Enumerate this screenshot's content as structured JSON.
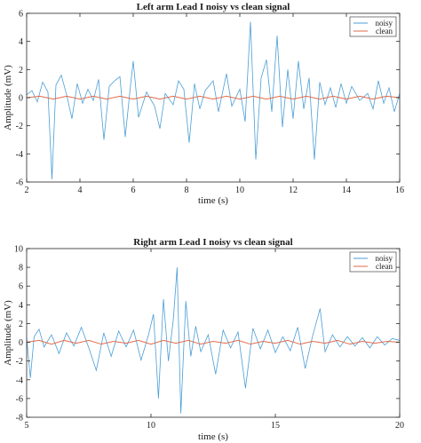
{
  "chart_data": [
    {
      "type": "line",
      "title": "Left arm Lead I noisy vs clean signal",
      "xlabel": "time (s)",
      "ylabel": "Amplitude (mV)",
      "xlim": [
        2,
        16
      ],
      "ylim": [
        -6,
        6
      ],
      "xticks": [
        2,
        4,
        6,
        8,
        10,
        12,
        14,
        16
      ],
      "yticks": [
        -6,
        -4,
        -2,
        0,
        2,
        4,
        6
      ],
      "legend_position": "top-right",
      "series": [
        {
          "name": "noisy",
          "color": "#4a9ed6",
          "points": [
            [
              2.0,
              0.2
            ],
            [
              2.2,
              0.5
            ],
            [
              2.4,
              -0.3
            ],
            [
              2.6,
              1.1
            ],
            [
              2.8,
              0.4
            ],
            [
              2.95,
              -5.8
            ],
            [
              3.1,
              0.9
            ],
            [
              3.3,
              1.6
            ],
            [
              3.5,
              0.2
            ],
            [
              3.7,
              -1.5
            ],
            [
              3.9,
              1.0
            ],
            [
              4.1,
              -0.4
            ],
            [
              4.3,
              0.6
            ],
            [
              4.5,
              -0.2
            ],
            [
              4.7,
              1.3
            ],
            [
              4.9,
              -3.0
            ],
            [
              5.1,
              0.8
            ],
            [
              5.3,
              1.2
            ],
            [
              5.5,
              1.5
            ],
            [
              5.7,
              -2.8
            ],
            [
              5.9,
              0.9
            ],
            [
              6.0,
              2.6
            ],
            [
              6.2,
              -1.4
            ],
            [
              6.5,
              0.4
            ],
            [
              6.8,
              -0.6
            ],
            [
              7.0,
              -2.2
            ],
            [
              7.2,
              0.3
            ],
            [
              7.5,
              -0.5
            ],
            [
              7.7,
              1.2
            ],
            [
              7.9,
              0.6
            ],
            [
              8.1,
              -3.2
            ],
            [
              8.3,
              1.0
            ],
            [
              8.5,
              -0.8
            ],
            [
              8.7,
              0.5
            ],
            [
              9.0,
              1.2
            ],
            [
              9.2,
              -1.0
            ],
            [
              9.5,
              1.7
            ],
            [
              9.7,
              -0.6
            ],
            [
              10.0,
              0.6
            ],
            [
              10.2,
              -1.7
            ],
            [
              10.4,
              5.4
            ],
            [
              10.6,
              -4.4
            ],
            [
              10.8,
              1.4
            ],
            [
              11.0,
              2.7
            ],
            [
              11.2,
              -1.0
            ],
            [
              11.4,
              4.4
            ],
            [
              11.6,
              -2.1
            ],
            [
              11.8,
              2.0
            ],
            [
              12.0,
              -1.5
            ],
            [
              12.2,
              2.6
            ],
            [
              12.4,
              -0.8
            ],
            [
              12.6,
              1.4
            ],
            [
              12.8,
              -4.4
            ],
            [
              13.0,
              1.1
            ],
            [
              13.2,
              -0.5
            ],
            [
              13.4,
              0.7
            ],
            [
              13.6,
              -0.7
            ],
            [
              13.8,
              1.0
            ],
            [
              14.0,
              -0.4
            ],
            [
              14.2,
              0.8
            ],
            [
              14.5,
              -0.2
            ],
            [
              14.8,
              0.3
            ],
            [
              15.0,
              -0.8
            ],
            [
              15.2,
              1.2
            ],
            [
              15.4,
              -0.4
            ],
            [
              15.6,
              0.7
            ],
            [
              15.8,
              -1.0
            ],
            [
              16.0,
              0.3
            ]
          ]
        },
        {
          "name": "clean",
          "color": "#e06a4a",
          "points": [
            [
              2.0,
              0.0
            ],
            [
              2.5,
              0.1
            ],
            [
              3.0,
              -0.1
            ],
            [
              3.5,
              0.1
            ],
            [
              4.0,
              -0.1
            ],
            [
              4.5,
              0.1
            ],
            [
              5.0,
              -0.1
            ],
            [
              5.5,
              0.1
            ],
            [
              6.0,
              -0.1
            ],
            [
              6.5,
              0.1
            ],
            [
              7.0,
              -0.1
            ],
            [
              7.5,
              0.1
            ],
            [
              8.0,
              -0.1
            ],
            [
              8.5,
              0.1
            ],
            [
              9.0,
              -0.1
            ],
            [
              9.5,
              0.1
            ],
            [
              10.0,
              -0.1
            ],
            [
              10.5,
              0.1
            ],
            [
              11.0,
              -0.1
            ],
            [
              11.5,
              0.1
            ],
            [
              12.0,
              -0.1
            ],
            [
              12.5,
              0.1
            ],
            [
              13.0,
              -0.1
            ],
            [
              13.5,
              0.1
            ],
            [
              14.0,
              -0.1
            ],
            [
              14.5,
              0.1
            ],
            [
              15.0,
              -0.1
            ],
            [
              15.5,
              0.1
            ],
            [
              16.0,
              0.0
            ]
          ]
        }
      ]
    },
    {
      "type": "line",
      "title": "Right arm Lead I noisy vs clean signal",
      "xlabel": "time (s)",
      "ylabel": "Amplitude (mV)",
      "xlim": [
        5,
        20
      ],
      "ylim": [
        -8,
        10
      ],
      "xticks": [
        5,
        10,
        15,
        20
      ],
      "yticks": [
        -8,
        -6,
        -4,
        -2,
        0,
        2,
        4,
        6,
        8,
        10
      ],
      "legend_position": "top-right",
      "series": [
        {
          "name": "noisy",
          "color": "#4a9ed6",
          "points": [
            [
              5.0,
              0.5
            ],
            [
              5.15,
              -3.8
            ],
            [
              5.3,
              0.6
            ],
            [
              5.5,
              1.4
            ],
            [
              5.7,
              -0.5
            ],
            [
              6.0,
              0.8
            ],
            [
              6.3,
              -1.2
            ],
            [
              6.6,
              1.0
            ],
            [
              6.9,
              -0.4
            ],
            [
              7.2,
              1.6
            ],
            [
              7.5,
              -0.6
            ],
            [
              7.8,
              -3.0
            ],
            [
              8.1,
              1.0
            ],
            [
              8.4,
              -1.5
            ],
            [
              8.7,
              1.2
            ],
            [
              9.0,
              -0.5
            ],
            [
              9.3,
              1.3
            ],
            [
              9.6,
              -1.9
            ],
            [
              9.9,
              0.8
            ],
            [
              10.1,
              3.0
            ],
            [
              10.3,
              -6.0
            ],
            [
              10.5,
              4.6
            ],
            [
              10.7,
              -2.0
            ],
            [
              10.9,
              2.5
            ],
            [
              11.05,
              8.0
            ],
            [
              11.2,
              -7.6
            ],
            [
              11.4,
              4.4
            ],
            [
              11.6,
              -1.5
            ],
            [
              11.8,
              1.7
            ],
            [
              12.0,
              -1.0
            ],
            [
              12.3,
              0.8
            ],
            [
              12.6,
              -3.4
            ],
            [
              12.9,
              1.3
            ],
            [
              13.2,
              -0.6
            ],
            [
              13.5,
              1.1
            ],
            [
              13.8,
              -4.9
            ],
            [
              14.1,
              1.5
            ],
            [
              14.4,
              -0.7
            ],
            [
              14.7,
              1.3
            ],
            [
              15.0,
              -1.1
            ],
            [
              15.3,
              0.6
            ],
            [
              15.6,
              -0.9
            ],
            [
              15.9,
              1.6
            ],
            [
              16.2,
              -2.8
            ],
            [
              16.5,
              0.7
            ],
            [
              16.8,
              3.6
            ],
            [
              17.0,
              -1.0
            ],
            [
              17.3,
              0.8
            ],
            [
              17.6,
              -0.5
            ],
            [
              17.9,
              0.6
            ],
            [
              18.2,
              -0.4
            ],
            [
              18.5,
              0.5
            ],
            [
              18.8,
              -0.6
            ],
            [
              19.1,
              0.6
            ],
            [
              19.4,
              -0.3
            ],
            [
              19.7,
              0.4
            ],
            [
              20.0,
              0.2
            ]
          ]
        },
        {
          "name": "clean",
          "color": "#e06a4a",
          "points": [
            [
              5.0,
              0.0
            ],
            [
              5.5,
              0.2
            ],
            [
              6.0,
              -0.2
            ],
            [
              6.5,
              0.2
            ],
            [
              7.0,
              -0.1
            ],
            [
              7.5,
              0.2
            ],
            [
              8.0,
              -0.2
            ],
            [
              8.5,
              0.1
            ],
            [
              9.0,
              -0.1
            ],
            [
              9.5,
              0.2
            ],
            [
              10.0,
              -0.2
            ],
            [
              10.5,
              0.2
            ],
            [
              11.0,
              -0.1
            ],
            [
              11.5,
              0.2
            ],
            [
              12.0,
              -0.2
            ],
            [
              12.5,
              0.1
            ],
            [
              13.0,
              -0.1
            ],
            [
              13.5,
              0.2
            ],
            [
              14.0,
              -0.2
            ],
            [
              14.5,
              0.1
            ],
            [
              15.0,
              -0.1
            ],
            [
              15.5,
              0.2
            ],
            [
              16.0,
              -0.2
            ],
            [
              16.5,
              0.1
            ],
            [
              17.0,
              -0.1
            ],
            [
              17.5,
              0.2
            ],
            [
              18.0,
              -0.2
            ],
            [
              18.5,
              0.1
            ],
            [
              19.0,
              -0.1
            ],
            [
              19.5,
              0.1
            ],
            [
              20.0,
              0.0
            ]
          ]
        }
      ]
    }
  ]
}
